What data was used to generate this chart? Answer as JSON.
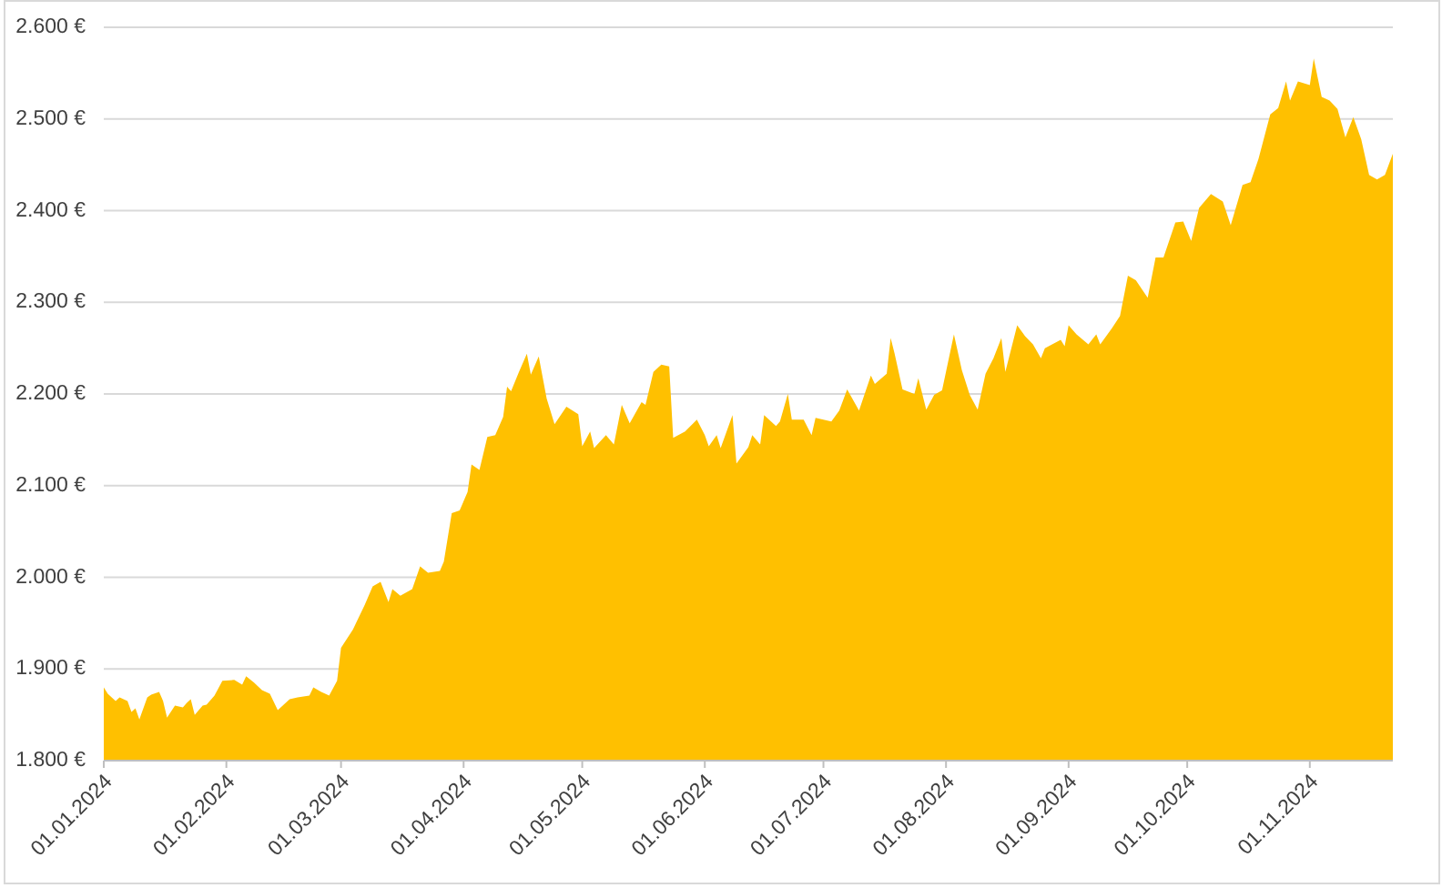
{
  "chart_data": {
    "type": "area",
    "color": "#ffc000",
    "grid": "y",
    "xlim": [
      "2024-01-01",
      "2024-11-22"
    ],
    "xticks": [
      {
        "value": "2024-01-01",
        "label": "01.01.2024"
      },
      {
        "value": "2024-02-01",
        "label": "01.02.2024"
      },
      {
        "value": "2024-03-01",
        "label": "01.03.2024"
      },
      {
        "value": "2024-04-01",
        "label": "01.04.2024"
      },
      {
        "value": "2024-05-01",
        "label": "01.05.2024"
      },
      {
        "value": "2024-06-01",
        "label": "01.06.2024"
      },
      {
        "value": "2024-07-01",
        "label": "01.07.2024"
      },
      {
        "value": "2024-08-01",
        "label": "01.08.2024"
      },
      {
        "value": "2024-09-01",
        "label": "01.09.2024"
      },
      {
        "value": "2024-10-01",
        "label": "01.10.2024"
      },
      {
        "value": "2024-11-01",
        "label": "01.11.2024"
      }
    ],
    "ylim": [
      1800,
      2600
    ],
    "yticks": [
      {
        "value": 1800,
        "label": "1.800 €"
      },
      {
        "value": 1900,
        "label": "1.900 €"
      },
      {
        "value": 2000,
        "label": "2.000 €"
      },
      {
        "value": 2100,
        "label": "2.100 €"
      },
      {
        "value": 2200,
        "label": "2.200 €"
      },
      {
        "value": 2300,
        "label": "2.300 €"
      },
      {
        "value": 2400,
        "label": "2.400 €"
      },
      {
        "value": 2500,
        "label": "2.500 €"
      },
      {
        "value": 2600,
        "label": "2.600 €"
      }
    ],
    "x": [
      "2024-01-01",
      "2024-01-02",
      "2024-01-04",
      "2024-01-05",
      "2024-01-07",
      "2024-01-08",
      "2024-01-09",
      "2024-01-10",
      "2024-01-12",
      "2024-01-13",
      "2024-01-15",
      "2024-01-16",
      "2024-01-17",
      "2024-01-19",
      "2024-01-21",
      "2024-01-22",
      "2024-01-23",
      "2024-01-24",
      "2024-01-26",
      "2024-01-27",
      "2024-01-29",
      "2024-01-31",
      "2024-02-03",
      "2024-02-05",
      "2024-02-06",
      "2024-02-08",
      "2024-02-10",
      "2024-02-12",
      "2024-02-14",
      "2024-02-17",
      "2024-02-19",
      "2024-02-22",
      "2024-02-23",
      "2024-02-25",
      "2024-02-27",
      "2024-02-29",
      "2024-03-01",
      "2024-03-04",
      "2024-03-07",
      "2024-03-09",
      "2024-03-11",
      "2024-03-13",
      "2024-03-14",
      "2024-03-16",
      "2024-03-19",
      "2024-03-21",
      "2024-03-23",
      "2024-03-26",
      "2024-03-27",
      "2024-03-29",
      "2024-03-31",
      "2024-04-02",
      "2024-04-03",
      "2024-04-05",
      "2024-04-07",
      "2024-04-09",
      "2024-04-11",
      "2024-04-12",
      "2024-04-13",
      "2024-04-15",
      "2024-04-17",
      "2024-04-18",
      "2024-04-20",
      "2024-04-22",
      "2024-04-24",
      "2024-04-27",
      "2024-04-30",
      "2024-05-01",
      "2024-05-03",
      "2024-05-04",
      "2024-05-07",
      "2024-05-09",
      "2024-05-11",
      "2024-05-13",
      "2024-05-16",
      "2024-05-17",
      "2024-05-19",
      "2024-05-21",
      "2024-05-23",
      "2024-05-24",
      "2024-05-27",
      "2024-05-30",
      "2024-06-01",
      "2024-06-02",
      "2024-06-04",
      "2024-06-05",
      "2024-06-08",
      "2024-06-09",
      "2024-06-12",
      "2024-06-13",
      "2024-06-15",
      "2024-06-16",
      "2024-06-19",
      "2024-06-20",
      "2024-06-22",
      "2024-06-23",
      "2024-06-26",
      "2024-06-28",
      "2024-06-29",
      "2024-07-03",
      "2024-07-05",
      "2024-07-07",
      "2024-07-10",
      "2024-07-13",
      "2024-07-14",
      "2024-07-17",
      "2024-07-18",
      "2024-07-19",
      "2024-07-21",
      "2024-07-24",
      "2024-07-25",
      "2024-07-27",
      "2024-07-29",
      "2024-07-31",
      "2024-08-03",
      "2024-08-05",
      "2024-08-07",
      "2024-08-09",
      "2024-08-11",
      "2024-08-13",
      "2024-08-15",
      "2024-08-16",
      "2024-08-19",
      "2024-08-21",
      "2024-08-23",
      "2024-08-25",
      "2024-08-26",
      "2024-08-30",
      "2024-08-31",
      "2024-09-01",
      "2024-09-03",
      "2024-09-06",
      "2024-09-08",
      "2024-09-09",
      "2024-09-12",
      "2024-09-14",
      "2024-09-16",
      "2024-09-18",
      "2024-09-21",
      "2024-09-23",
      "2024-09-25",
      "2024-09-28",
      "2024-09-30",
      "2024-10-02",
      "2024-10-04",
      "2024-10-07",
      "2024-10-10",
      "2024-10-12",
      "2024-10-15",
      "2024-10-17",
      "2024-10-19",
      "2024-10-22",
      "2024-10-24",
      "2024-10-26",
      "2024-10-27",
      "2024-10-29",
      "2024-11-01",
      "2024-11-02",
      "2024-11-04",
      "2024-11-06",
      "2024-11-08",
      "2024-11-10",
      "2024-11-12",
      "2024-11-14",
      "2024-11-16",
      "2024-11-18",
      "2024-11-20",
      "2024-11-22"
    ],
    "values": [
      1880,
      1873,
      1865,
      1869,
      1865,
      1853,
      1857,
      1845,
      1869,
      1872,
      1875,
      1865,
      1847,
      1860,
      1858,
      1863,
      1867,
      1850,
      1860,
      1861,
      1871,
      1887,
      1888,
      1883,
      1892,
      1885,
      1877,
      1873,
      1855,
      1867,
      1869,
      1871,
      1880,
      1875,
      1871,
      1887,
      1923,
      1943,
      1970,
      1990,
      1995,
      1973,
      1987,
      1980,
      1987,
      2012,
      2005,
      2007,
      2017,
      2070,
      2073,
      2093,
      2123,
      2117,
      2153,
      2155,
      2175,
      2208,
      2203,
      2224,
      2244,
      2221,
      2241,
      2195,
      2167,
      2186,
      2178,
      2143,
      2159,
      2141,
      2155,
      2145,
      2188,
      2168,
      2191,
      2188,
      2224,
      2232,
      2230,
      2152,
      2159,
      2172,
      2155,
      2143,
      2155,
      2141,
      2177,
      2124,
      2142,
      2155,
      2145,
      2177,
      2165,
      2170,
      2200,
      2172,
      2172,
      2155,
      2174,
      2170,
      2182,
      2205,
      2182,
      2220,
      2211,
      2222,
      2261,
      2244,
      2205,
      2200,
      2217,
      2183,
      2199,
      2204,
      2265,
      2226,
      2199,
      2183,
      2222,
      2239,
      2261,
      2224,
      2275,
      2263,
      2254,
      2239,
      2250,
      2259,
      2252,
      2275,
      2265,
      2254,
      2265,
      2254,
      2272,
      2285,
      2329,
      2324,
      2305,
      2349,
      2349,
      2387,
      2388,
      2367,
      2403,
      2418,
      2410,
      2384,
      2428,
      2431,
      2456,
      2505,
      2512,
      2541,
      2520,
      2541,
      2537,
      2566,
      2524,
      2520,
      2511,
      2480,
      2502,
      2478,
      2439,
      2434,
      2439,
      2462
    ]
  }
}
